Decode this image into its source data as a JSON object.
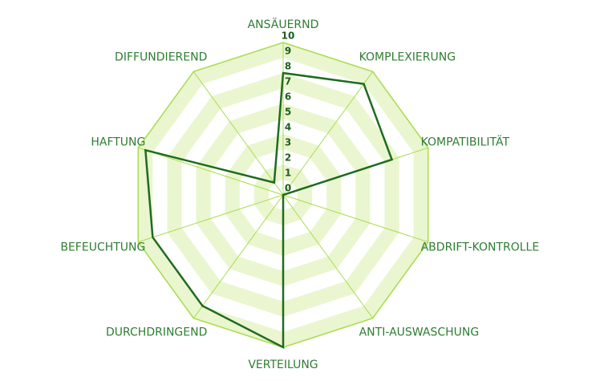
{
  "chart_data": {
    "type": "radar",
    "categories": [
      "ANSÄUERND",
      "KOMPLEXIERUNG",
      "KOMPATIBILITÄT",
      "ABDRIFT-KONTROLLE",
      "ANTI-AUSWASCHUNG",
      "VERTEILUNG",
      "DURCHDRINGEND",
      "BEFEUCHTUNG",
      "HAFTUNG",
      "DIFFUNDIEREND"
    ],
    "series": [
      {
        "color": "#1f6b1f",
        "values": [
          8,
          9,
          7.5,
          0,
          0,
          10,
          9,
          9,
          9.5,
          1
        ]
      }
    ],
    "rlim": [
      0,
      10
    ],
    "rticks": [
      0,
      1,
      2,
      3,
      4,
      5,
      6,
      7,
      8,
      9,
      10
    ],
    "grid_color": "#a9dc4c",
    "band_color": "#eaf6cf"
  }
}
